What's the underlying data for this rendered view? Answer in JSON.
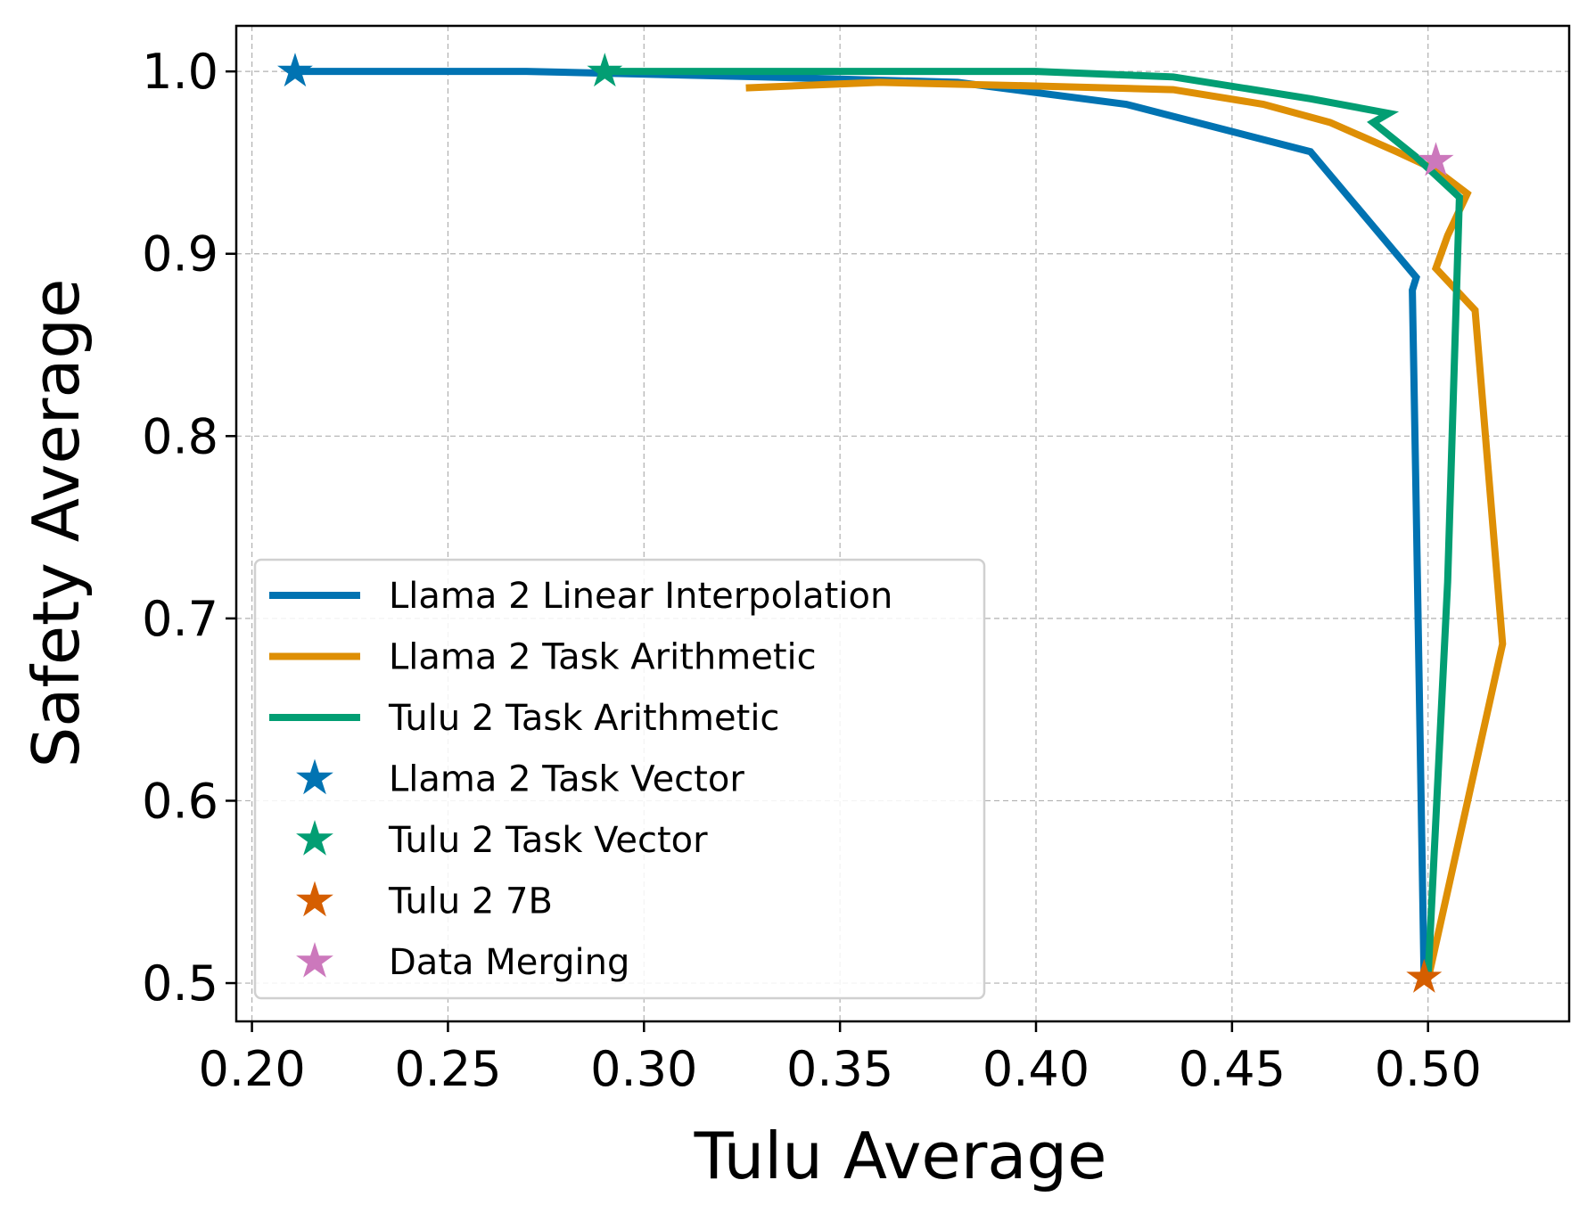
{
  "chart_data": {
    "type": "line",
    "title": "",
    "xlabel": "Tulu Average",
    "ylabel": "Safety Average",
    "xlim": [
      0.196,
      0.536
    ],
    "ylim": [
      0.479,
      1.025
    ],
    "xticks": [
      0.2,
      0.25,
      0.3,
      0.35,
      0.4,
      0.45,
      0.5
    ],
    "xtick_labels": [
      "0.20",
      "0.25",
      "0.30",
      "0.35",
      "0.40",
      "0.45",
      "0.50"
    ],
    "yticks": [
      0.5,
      0.6,
      0.7,
      0.8,
      0.9,
      1.0
    ],
    "ytick_labels": [
      "0.5",
      "0.6",
      "0.7",
      "0.8",
      "0.9",
      "1.0"
    ],
    "grid": true,
    "legend_position": "lower-left",
    "series": [
      {
        "name": "Llama 2 Linear Interpolation",
        "kind": "line",
        "color": "#0173b2",
        "x": [
          0.211,
          0.27,
          0.33,
          0.38,
          0.423,
          0.47,
          0.497,
          0.496,
          0.497,
          0.499
        ],
        "y": [
          1.0,
          1.0,
          0.997,
          0.994,
          0.982,
          0.956,
          0.887,
          0.88,
          0.76,
          0.502
        ]
      },
      {
        "name": "Llama 2 Task Arithmetic",
        "kind": "line",
        "color": "#de8f05",
        "x": [
          0.326,
          0.36,
          0.4,
          0.435,
          0.458,
          0.475,
          0.492,
          0.502,
          0.51,
          0.505,
          0.502,
          0.512,
          0.519,
          0.5
        ],
        "y": [
          0.991,
          0.994,
          0.992,
          0.99,
          0.982,
          0.972,
          0.956,
          0.946,
          0.933,
          0.91,
          0.892,
          0.869,
          0.686,
          0.502
        ]
      },
      {
        "name": "Tulu 2 Task Arithmetic",
        "kind": "line",
        "color": "#029e73",
        "x": [
          0.29,
          0.35,
          0.4,
          0.435,
          0.47,
          0.49,
          0.486,
          0.497,
          0.508,
          0.505,
          0.5
        ],
        "y": [
          1.0,
          1.0,
          1.0,
          0.997,
          0.985,
          0.977,
          0.972,
          0.953,
          0.931,
          0.72,
          0.503
        ]
      },
      {
        "name": "Llama 2 Task Vector",
        "kind": "star",
        "color": "#0173b2",
        "x": [
          0.211
        ],
        "y": [
          1.0
        ]
      },
      {
        "name": "Tulu 2 Task Vector",
        "kind": "star",
        "color": "#029e73",
        "x": [
          0.29
        ],
        "y": [
          1.0
        ]
      },
      {
        "name": "Tulu 2 7B",
        "kind": "star",
        "color": "#d55e00",
        "x": [
          0.499
        ],
        "y": [
          0.503
        ]
      },
      {
        "name": "Data Merging",
        "kind": "star",
        "color": "#cc78bc",
        "x": [
          0.502
        ],
        "y": [
          0.951
        ]
      }
    ]
  }
}
